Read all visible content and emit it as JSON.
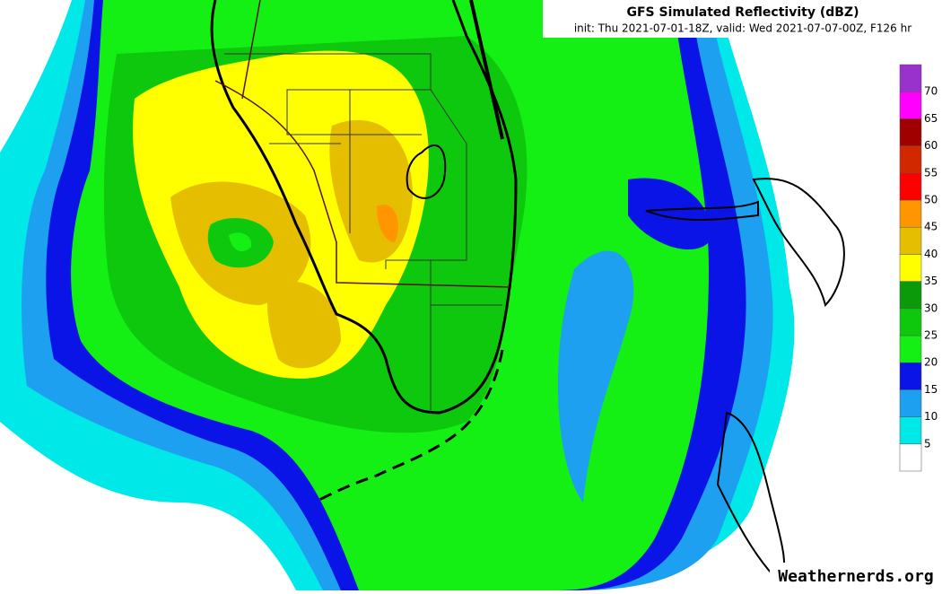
{
  "header": {
    "title": "GFS Simulated Reflectivity (dBZ)",
    "subtitle": "init: Thu 2021-07-01-18Z, valid: Wed 2021-07-07-00Z, F126 hr"
  },
  "colorbar": {
    "ticks": [
      5,
      10,
      15,
      20,
      25,
      30,
      35,
      40,
      45,
      50,
      55,
      60,
      65,
      70
    ],
    "colors": [
      "#ffffff",
      "#00e8e8",
      "#1ea0f0",
      "#0a14e6",
      "#14f014",
      "#0ec80e",
      "#0a9a0a",
      "#ffff00",
      "#e6be00",
      "#ff9600",
      "#ff0000",
      "#d22800",
      "#a00000",
      "#ff00ff",
      "#9932cc"
    ]
  },
  "watermark": "Weathernerds.org"
}
